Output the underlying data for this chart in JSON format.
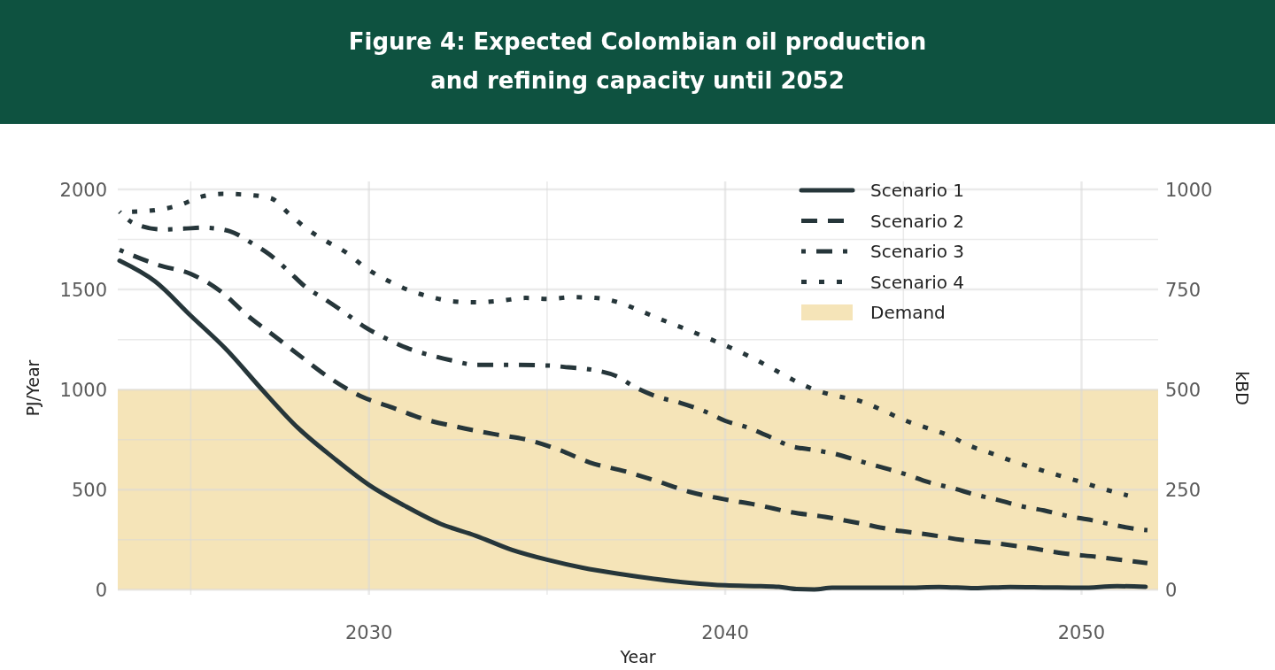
{
  "chart_data": {
    "type": "line",
    "title": "Figure 4: Expected Colombian oil production and refining capacity until 2052",
    "xlabel": "Year",
    "ylabel": "PJ/Year",
    "y2label": "kBD",
    "xlim": [
      2022.95,
      2052.15
    ],
    "xticks": [
      2030,
      2040,
      2050
    ],
    "ylim": [
      -25,
      2040
    ],
    "yticks": [
      0,
      500,
      1000,
      1500,
      2000
    ],
    "y2lim": [
      -12.5,
      1020
    ],
    "y2ticks": [
      0,
      250,
      500,
      750,
      1000
    ],
    "grid": true,
    "legend": "top right",
    "bands": [
      {
        "axis": "y",
        "from": 0,
        "to": 1000,
        "label": "Demand",
        "color": "#f5e4b8"
      }
    ],
    "series": [
      {
        "name": "Scenario 1",
        "color": "#26363a",
        "line_style": "solid",
        "x": [
          2023,
          2024,
          2025,
          2026,
          2027,
          2028,
          2029,
          2030,
          2031,
          2032,
          2033,
          2034,
          2035,
          2036,
          2037,
          2038,
          2039,
          2040,
          2041,
          2041.5,
          2042,
          2042.5,
          2043,
          2044,
          2045,
          2046,
          2047,
          2048,
          2049,
          2050,
          2051,
          2051.8
        ],
        "values": [
          1644,
          1540,
          1369,
          1200,
          1000,
          810,
          660,
          524,
          420,
          330,
          270,
          200,
          150,
          110,
          80,
          55,
          35,
          22,
          18,
          15,
          4,
          2,
          10,
          10,
          10,
          14,
          8,
          14,
          12,
          10,
          18,
          15
        ]
      },
      {
        "name": "Scenario 2",
        "color": "#26363a",
        "line_style": "dashed",
        "x": [
          2023,
          2024.1,
          2025,
          2025.85,
          2026.6,
          2027.35,
          2028.1,
          2028.9,
          2029.75,
          2030.65,
          2031.55,
          2032.5,
          2033.5,
          2034.5,
          2035.35,
          2036.2,
          2037.2,
          2038.1,
          2039,
          2039.95,
          2040.95,
          2041.85,
          2042.8,
          2043.75,
          2044.75,
          2045.7,
          2046.65,
          2047.65,
          2048.55,
          2049.5,
          2050.45,
          2051.45,
          2051.85
        ],
        "values": [
          1698,
          1622,
          1578,
          1489,
          1369,
          1267,
          1164,
          1058,
          969,
          911,
          853,
          813,
          778,
          747,
          698,
          636,
          591,
          542,
          489,
          453,
          422,
          387,
          364,
          333,
          298,
          276,
          249,
          231,
          209,
          182,
          164,
          142,
          133
        ]
      },
      {
        "name": "Scenario 3",
        "color": "#26363a",
        "line_style": "dashdot",
        "x": [
          2023,
          2023.4,
          2024.2,
          2024.8,
          2025.35,
          2026.1,
          2026.7,
          2027.2,
          2027.75,
          2028.2,
          2028.75,
          2029.3,
          2029.9,
          2030.45,
          2031.05,
          2031.7,
          2032.3,
          2033,
          2033.7,
          2035.05,
          2035.6,
          2036.3,
          2036.95,
          2037.5,
          2038.1,
          2038.75,
          2039.4,
          2040,
          2040.65,
          2041.25,
          2041.8,
          2042.5,
          2043.15,
          2043.75,
          2044.45,
          2045.05,
          2045.7,
          2046.4,
          2047,
          2047.65,
          2048.3,
          2048.95,
          2049.6,
          2050.3,
          2050.9,
          2051.6,
          2051.85
        ],
        "values": [
          1889,
          1831,
          1800,
          1804,
          1809,
          1791,
          1733,
          1676,
          1591,
          1516,
          1453,
          1387,
          1311,
          1258,
          1209,
          1173,
          1147,
          1124,
          1124,
          1120,
          1111,
          1098,
          1067,
          1009,
          964,
          933,
          893,
          844,
          809,
          764,
          720,
          698,
          676,
          644,
          609,
          578,
          538,
          507,
          476,
          449,
          418,
          396,
          369,
          347,
          324,
          302,
          298
        ]
      },
      {
        "name": "Scenario 4",
        "color": "#26363a",
        "line_style": "dotted",
        "x": [
          2023.35,
          2024.05,
          2024.65,
          2025.3,
          2025.9,
          2026.6,
          2027.25,
          2027.75,
          2028.25,
          2028.8,
          2029.4,
          2029.9,
          2030.5,
          2031.1,
          2031.75,
          2032.4,
          2033.05,
          2033.7,
          2034.4,
          2035.05,
          2035.7,
          2036.35,
          2037,
          2037.65,
          2038.25,
          2038.9,
          2039.5,
          2040.1,
          2040.7,
          2041.3,
          2041.9,
          2042.5,
          2043.1,
          2043.8,
          2044.4,
          2045,
          2045.65,
          2046.25,
          2046.85,
          2047.5,
          2048.1,
          2048.75,
          2049.4,
          2050,
          2050.65,
          2051.3
        ],
        "values": [
          1889,
          1898,
          1920,
          1964,
          1978,
          1973,
          1956,
          1880,
          1804,
          1742,
          1680,
          1609,
          1547,
          1498,
          1462,
          1440,
          1436,
          1444,
          1458,
          1453,
          1462,
          1458,
          1436,
          1391,
          1347,
          1302,
          1258,
          1213,
          1164,
          1107,
          1049,
          1000,
          969,
          942,
          898,
          849,
          809,
          773,
          720,
          680,
          640,
          604,
          569,
          538,
          502,
          471
        ]
      }
    ]
  }
}
